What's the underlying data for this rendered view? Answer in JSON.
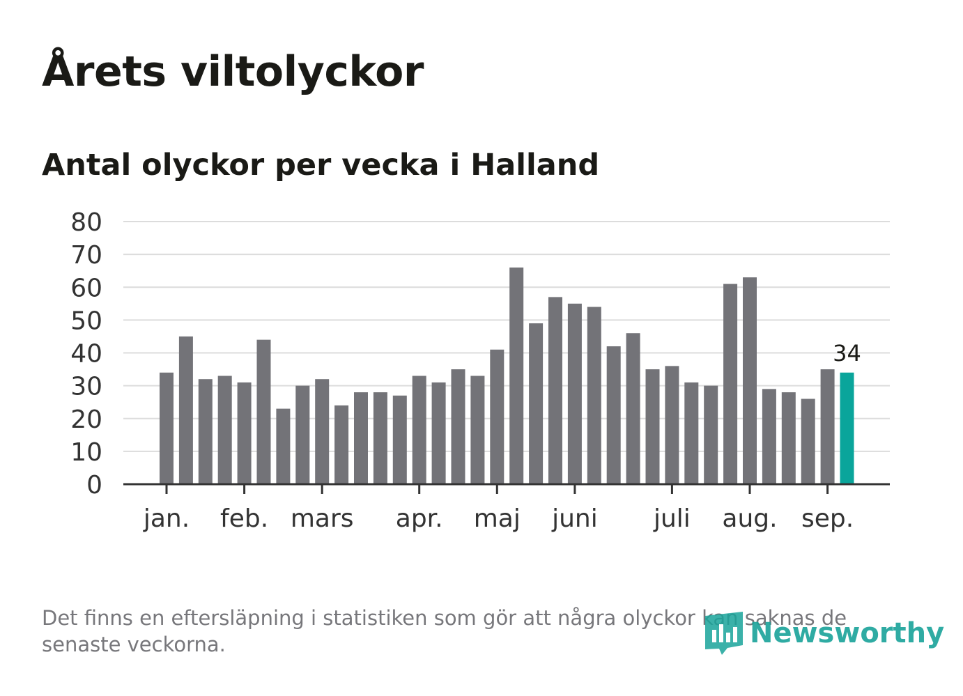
{
  "title": "Årets viltolyckor",
  "subtitle": "Antal olyckor per vecka i Halland",
  "note": "Det finns en eftersläpning i statistiken som gör att några olyckor kan saknas de senaste veckorna.",
  "brand": {
    "name": "Newsworthy",
    "icon": "newsworthy-logo-icon"
  },
  "colors": {
    "bar": "#737378",
    "highlight": "#0aa59b",
    "grid": "#dcdcdc",
    "axis": "#333333",
    "text": "#333333"
  },
  "chart_data": {
    "type": "bar",
    "ylim": [
      0,
      80
    ],
    "yticks": [
      0,
      10,
      20,
      30,
      40,
      50,
      60,
      70,
      80
    ],
    "grid": true,
    "xlabel": "",
    "ylabel": "",
    "month_labels": [
      {
        "label": "jan.",
        "week": 1
      },
      {
        "label": "feb.",
        "week": 5
      },
      {
        "label": "mars",
        "week": 9
      },
      {
        "label": "apr.",
        "week": 14
      },
      {
        "label": "maj",
        "week": 18
      },
      {
        "label": "juni",
        "week": 22
      },
      {
        "label": "juli",
        "week": 27
      },
      {
        "label": "aug.",
        "week": 31
      },
      {
        "label": "sep.",
        "week": 35
      }
    ],
    "values": [
      34,
      45,
      32,
      33,
      31,
      44,
      23,
      30,
      32,
      24,
      28,
      28,
      27,
      33,
      31,
      35,
      33,
      41,
      66,
      49,
      57,
      55,
      54,
      42,
      46,
      35,
      36,
      31,
      30,
      61,
      63,
      29,
      28,
      26,
      35,
      34
    ],
    "highlight_last": true,
    "highlight_label": "34"
  }
}
